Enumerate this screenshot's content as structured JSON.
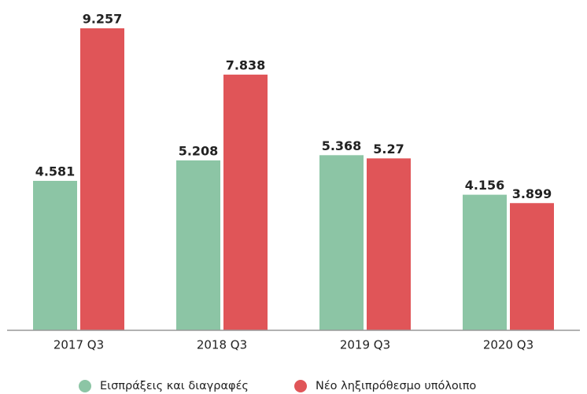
{
  "chart_data": {
    "type": "bar",
    "categories": [
      "2017 Q3",
      "2018 Q3",
      "2019 Q3",
      "2020 Q3"
    ],
    "series": [
      {
        "name": "Εισπράξεις και διαγραφές",
        "color": "#8cc5a5",
        "values": [
          4.581,
          5.208,
          5.368,
          4.156
        ]
      },
      {
        "name": "Νέο ληξιπρόθεσμο υπόλοιπο",
        "color": "#e05558",
        "values": [
          9.257,
          7.838,
          5.27,
          3.899
        ]
      }
    ]
  }
}
